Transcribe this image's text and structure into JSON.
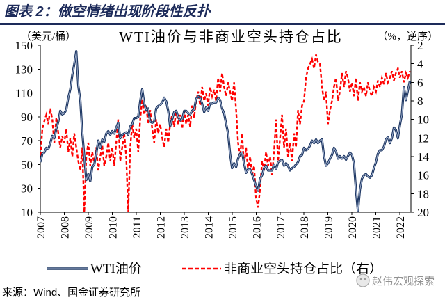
{
  "header": {
    "title": "图表 2：做空情绪出现阶段性反扑"
  },
  "chart_data": {
    "type": "line",
    "title": "WTI油价与非商业空头持仓占比",
    "ylabel_left": "（美元/桶）",
    "ylabel_right": "（%，逆序）",
    "ylim_left": [
      10,
      150
    ],
    "ylim_right": [
      2,
      20
    ],
    "y_right_reversed": true,
    "y_left_ticks": [
      10,
      30,
      50,
      70,
      90,
      110,
      130,
      150
    ],
    "y_right_ticks": [
      2,
      4,
      6,
      8,
      10,
      12,
      14,
      16,
      18,
      20
    ],
    "x_tick_labels": [
      "2007",
      "2008",
      "2009",
      "2010",
      "2011",
      "2012",
      "2013",
      "2014",
      "2015",
      "2016",
      "2017",
      "2018",
      "2019",
      "2020",
      "2021",
      "2022"
    ],
    "grid": false,
    "legend": "bottom",
    "x": [
      "2007-01",
      "2007-02",
      "2007-03",
      "2007-04",
      "2007-05",
      "2007-06",
      "2007-07",
      "2007-08",
      "2007-09",
      "2007-10",
      "2007-11",
      "2007-12",
      "2008-01",
      "2008-02",
      "2008-03",
      "2008-04",
      "2008-05",
      "2008-06",
      "2008-07",
      "2008-08",
      "2008-09",
      "2008-10",
      "2008-11",
      "2008-12",
      "2009-01",
      "2009-02",
      "2009-03",
      "2009-04",
      "2009-05",
      "2009-06",
      "2009-07",
      "2009-08",
      "2009-09",
      "2009-10",
      "2009-11",
      "2009-12",
      "2010-01",
      "2010-02",
      "2010-03",
      "2010-04",
      "2010-05",
      "2010-06",
      "2010-07",
      "2010-08",
      "2010-09",
      "2010-10",
      "2010-11",
      "2010-12",
      "2011-01",
      "2011-02",
      "2011-03",
      "2011-04",
      "2011-05",
      "2011-06",
      "2011-07",
      "2011-08",
      "2011-09",
      "2011-10",
      "2011-11",
      "2011-12",
      "2012-01",
      "2012-02",
      "2012-03",
      "2012-04",
      "2012-05",
      "2012-06",
      "2012-07",
      "2012-08",
      "2012-09",
      "2012-10",
      "2012-11",
      "2012-12",
      "2013-01",
      "2013-02",
      "2013-03",
      "2013-04",
      "2013-05",
      "2013-06",
      "2013-07",
      "2013-08",
      "2013-09",
      "2013-10",
      "2013-11",
      "2013-12",
      "2014-01",
      "2014-02",
      "2014-03",
      "2014-04",
      "2014-05",
      "2014-06",
      "2014-07",
      "2014-08",
      "2014-09",
      "2014-10",
      "2014-11",
      "2014-12",
      "2015-01",
      "2015-02",
      "2015-03",
      "2015-04",
      "2015-05",
      "2015-06",
      "2015-07",
      "2015-08",
      "2015-09",
      "2015-10",
      "2015-11",
      "2015-12",
      "2016-01",
      "2016-02",
      "2016-03",
      "2016-04",
      "2016-05",
      "2016-06",
      "2016-07",
      "2016-08",
      "2016-09",
      "2016-10",
      "2016-11",
      "2016-12",
      "2017-01",
      "2017-02",
      "2017-03",
      "2017-04",
      "2017-05",
      "2017-06",
      "2017-07",
      "2017-08",
      "2017-09",
      "2017-10",
      "2017-11",
      "2017-12",
      "2018-01",
      "2018-02",
      "2018-03",
      "2018-04",
      "2018-05",
      "2018-06",
      "2018-07",
      "2018-08",
      "2018-09",
      "2018-10",
      "2018-11",
      "2018-12",
      "2019-01",
      "2019-02",
      "2019-03",
      "2019-04",
      "2019-05",
      "2019-06",
      "2019-07",
      "2019-08",
      "2019-09",
      "2019-10",
      "2019-11",
      "2019-12",
      "2020-01",
      "2020-02",
      "2020-03",
      "2020-04",
      "2020-05",
      "2020-06",
      "2020-07",
      "2020-08",
      "2020-09",
      "2020-10",
      "2020-11",
      "2020-12",
      "2021-01",
      "2021-02",
      "2021-03",
      "2021-04",
      "2021-05",
      "2021-06",
      "2021-07",
      "2021-08",
      "2021-09",
      "2021-10",
      "2021-11",
      "2021-12",
      "2022-01",
      "2022-02",
      "2022-03",
      "2022-04",
      "2022-05",
      "2022-06"
    ],
    "series": [
      {
        "name": "WTI油价",
        "axis": "left",
        "color": "#1f3864",
        "style": "double-line",
        "values": [
          52,
          59,
          60,
          64,
          63,
          68,
          74,
          72,
          80,
          86,
          95,
          92,
          93,
          96,
          106,
          113,
          125,
          134,
          145,
          116,
          104,
          77,
          57,
          37,
          42,
          36,
          48,
          50,
          59,
          70,
          64,
          71,
          69,
          76,
          78,
          75,
          78,
          76,
          81,
          85,
          72,
          75,
          76,
          77,
          75,
          82,
          84,
          89,
          89,
          90,
          103,
          113,
          101,
          96,
          97,
          86,
          85,
          86,
          97,
          99,
          100,
          102,
          106,
          103,
          95,
          82,
          88,
          94,
          95,
          90,
          87,
          88,
          95,
          95,
          93,
          92,
          95,
          96,
          105,
          107,
          106,
          101,
          94,
          98,
          95,
          101,
          101,
          102,
          102,
          106,
          104,
          97,
          93,
          84,
          76,
          59,
          47,
          51,
          48,
          55,
          59,
          60,
          51,
          43,
          46,
          46,
          42,
          37,
          32,
          28,
          38,
          41,
          47,
          49,
          45,
          45,
          45,
          50,
          46,
          52,
          53,
          54,
          49,
          51,
          49,
          45,
          47,
          48,
          50,
          52,
          57,
          58,
          64,
          62,
          63,
          66,
          70,
          68,
          71,
          68,
          70,
          71,
          57,
          49,
          51,
          55,
          58,
          64,
          61,
          55,
          57,
          55,
          57,
          54,
          57,
          60,
          58,
          51,
          29,
          11,
          29,
          38,
          41,
          42,
          40,
          39,
          41,
          47,
          52,
          59,
          62,
          62,
          65,
          71,
          73,
          68,
          72,
          81,
          79,
          72,
          83,
          92,
          115,
          104,
          112,
          120
        ]
      },
      {
        "name": "非商业空头持仓占比（右）",
        "axis": "right",
        "color": "#ff0000",
        "style": "dashed",
        "values": [
          14.5,
          11.0,
          10.2,
          9.5,
          10.5,
          8.8,
          10.0,
          12.5,
          9.8,
          11.5,
          13.0,
          11.8,
          12.5,
          11.0,
          13.5,
          12.0,
          14.0,
          11.5,
          13.0,
          14.5,
          15.5,
          13.0,
          20.0,
          14.0,
          12.5,
          15.0,
          13.5,
          14.8,
          13.0,
          15.5,
          14.0,
          12.8,
          15.0,
          14.0,
          12.5,
          14.5,
          13.0,
          15.0,
          12.5,
          10.0,
          14.5,
          13.0,
          11.5,
          14.0,
          20.0,
          13.0,
          10.5,
          12.0,
          11.0,
          13.5,
          10.0,
          7.8,
          9.5,
          8.5,
          10.5,
          9.0,
          11.0,
          12.5,
          10.0,
          11.5,
          10.5,
          12.0,
          13.0,
          11.0,
          12.5,
          10.5,
          9.5,
          10.8,
          9.0,
          10.5,
          9.5,
          11.0,
          9.0,
          10.5,
          9.5,
          10.8,
          8.5,
          9.8,
          8.0,
          7.0,
          8.5,
          6.5,
          8.0,
          7.2,
          8.5,
          6.5,
          7.5,
          6.8,
          8.0,
          5.5,
          7.0,
          5.0,
          6.5,
          7.5,
          6.0,
          7.0,
          8.0,
          6.0,
          9.0,
          12.5,
          14.0,
          11.5,
          15.0,
          13.0,
          15.5,
          14.0,
          16.0,
          15.0,
          18.5,
          19.5,
          17.5,
          14.5,
          15.5,
          13.5,
          15.0,
          14.0,
          16.0,
          13.5,
          10.0,
          14.5,
          12.0,
          9.5,
          13.0,
          11.0,
          14.0,
          12.5,
          14.5,
          11.5,
          13.0,
          9.0,
          10.5,
          8.5,
          8.0,
          5.5,
          4.5,
          4.0,
          3.5,
          4.5,
          3.0,
          3.8,
          4.0,
          6.5,
          8.0,
          7.0,
          10.5,
          9.0,
          8.0,
          6.5,
          5.5,
          8.0,
          7.0,
          5.0,
          6.5,
          4.8,
          5.5,
          7.0,
          6.0,
          7.5,
          5.5,
          8.0,
          6.0,
          7.0,
          6.5,
          7.5,
          6.0,
          7.0,
          7.5,
          6.5,
          7.0,
          5.8,
          6.5,
          5.5,
          6.2,
          5.0,
          6.0,
          5.5,
          4.8,
          5.8,
          5.0,
          4.5,
          5.5,
          4.8,
          6.0,
          5.0,
          5.5,
          4.8
        ]
      }
    ]
  },
  "footer": {
    "source": "来源：Wind、国金证券研究所"
  },
  "watermark": {
    "text": "赵伟宏观探索",
    "icon": "wechat-icon"
  }
}
